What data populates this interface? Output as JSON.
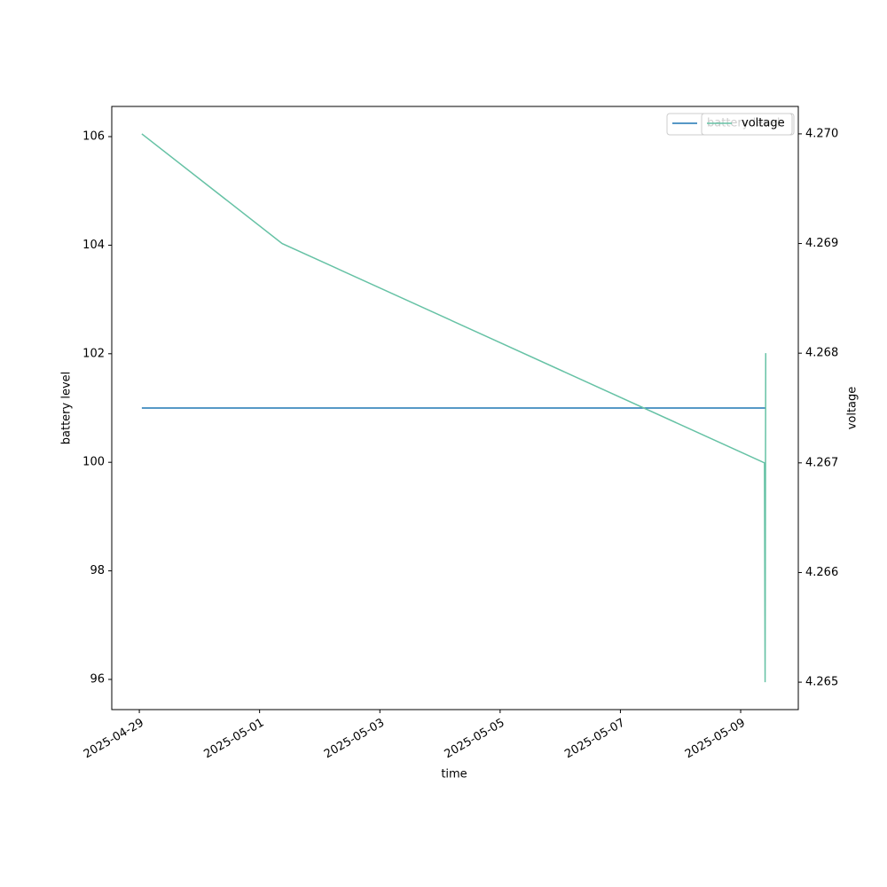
{
  "chart_data": {
    "type": "line",
    "x_label": "time",
    "y_label": "battery level",
    "y2_label": "voltage",
    "x": [
      "2025-04-29T01:00",
      "2025-05-01T09:00",
      "2025-05-09T09:30",
      "2025-05-09T09:45",
      "2025-05-09T10:00"
    ],
    "series": [
      {
        "name": "battery level",
        "color": "#1f77b4",
        "values": [
          101,
          101,
          101,
          101,
          101
        ]
      },
      {
        "name": "voltage",
        "color": "#66c2a5",
        "axis": "y2",
        "values": [
          4.27,
          4.269,
          4.267,
          4.265,
          4.268
        ]
      }
    ],
    "xlim": [
      "2025-04-28T13:00",
      "2025-05-09T23:00"
    ],
    "xticks": [
      "2025-04-29",
      "2025-05-01",
      "2025-05-03",
      "2025-05-05",
      "2025-05-07",
      "2025-05-09"
    ],
    "ylim": [
      95.444,
      106.556
    ],
    "yticks": [
      96,
      98,
      100,
      102,
      104,
      106
    ],
    "y2lim": [
      4.26475,
      4.27025
    ],
    "y2ticks": [
      4.265,
      4.266,
      4.267,
      4.268,
      4.269,
      {
        "value": 4.27,
        "label": "4.270"
      }
    ],
    "legend": "upper right"
  }
}
